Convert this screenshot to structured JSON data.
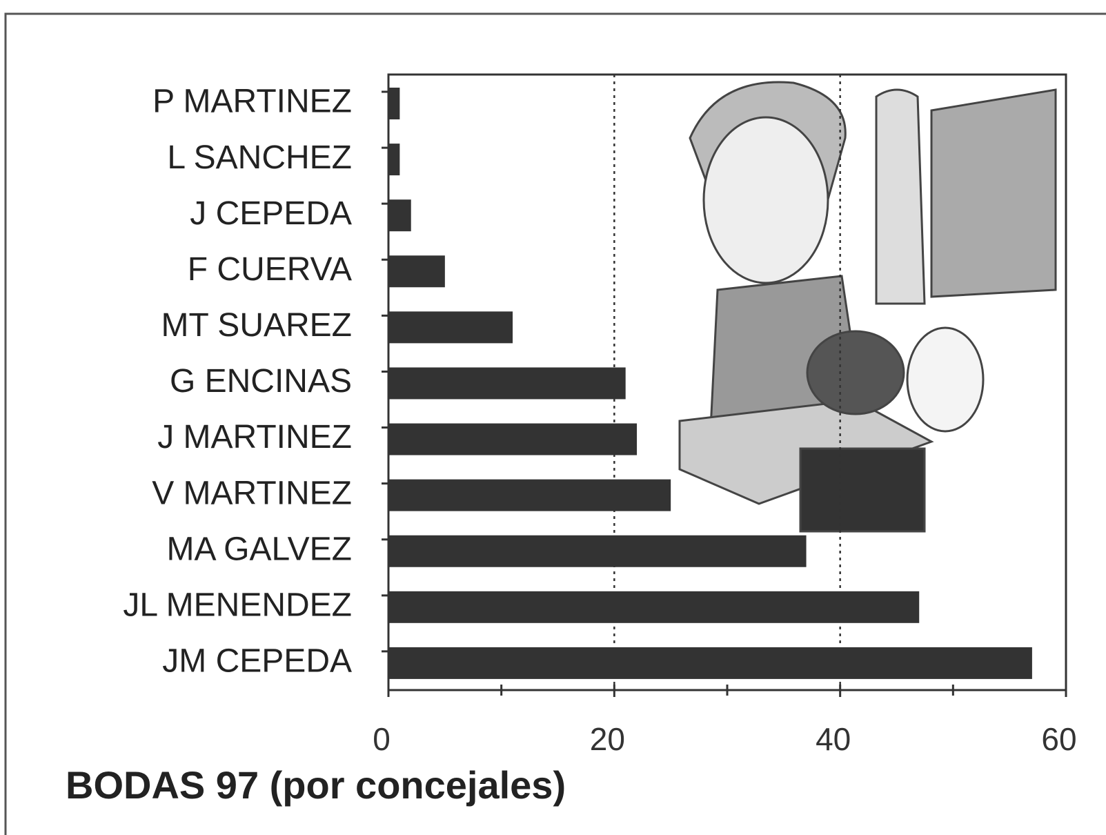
{
  "chart_data": {
    "type": "bar",
    "orientation": "horizontal",
    "title": "BODAS 97 (por concejales)",
    "categories": [
      "P MARTINEZ",
      "L SANCHEZ",
      "J CEPEDA",
      "F CUERVA",
      "MT SUAREZ",
      "G ENCINAS",
      "J MARTINEZ",
      "V MARTINEZ",
      "MA GALVEZ",
      "JL MENENDEZ",
      "JM CEPEDA"
    ],
    "values": [
      1,
      1,
      2,
      5,
      11,
      21,
      22,
      25,
      37,
      47,
      57
    ],
    "color": "#333333",
    "xlim": [
      0,
      60
    ],
    "xticks": [
      0,
      20,
      40,
      60
    ],
    "xminorticks": [
      10,
      30,
      50
    ],
    "grid": true
  }
}
